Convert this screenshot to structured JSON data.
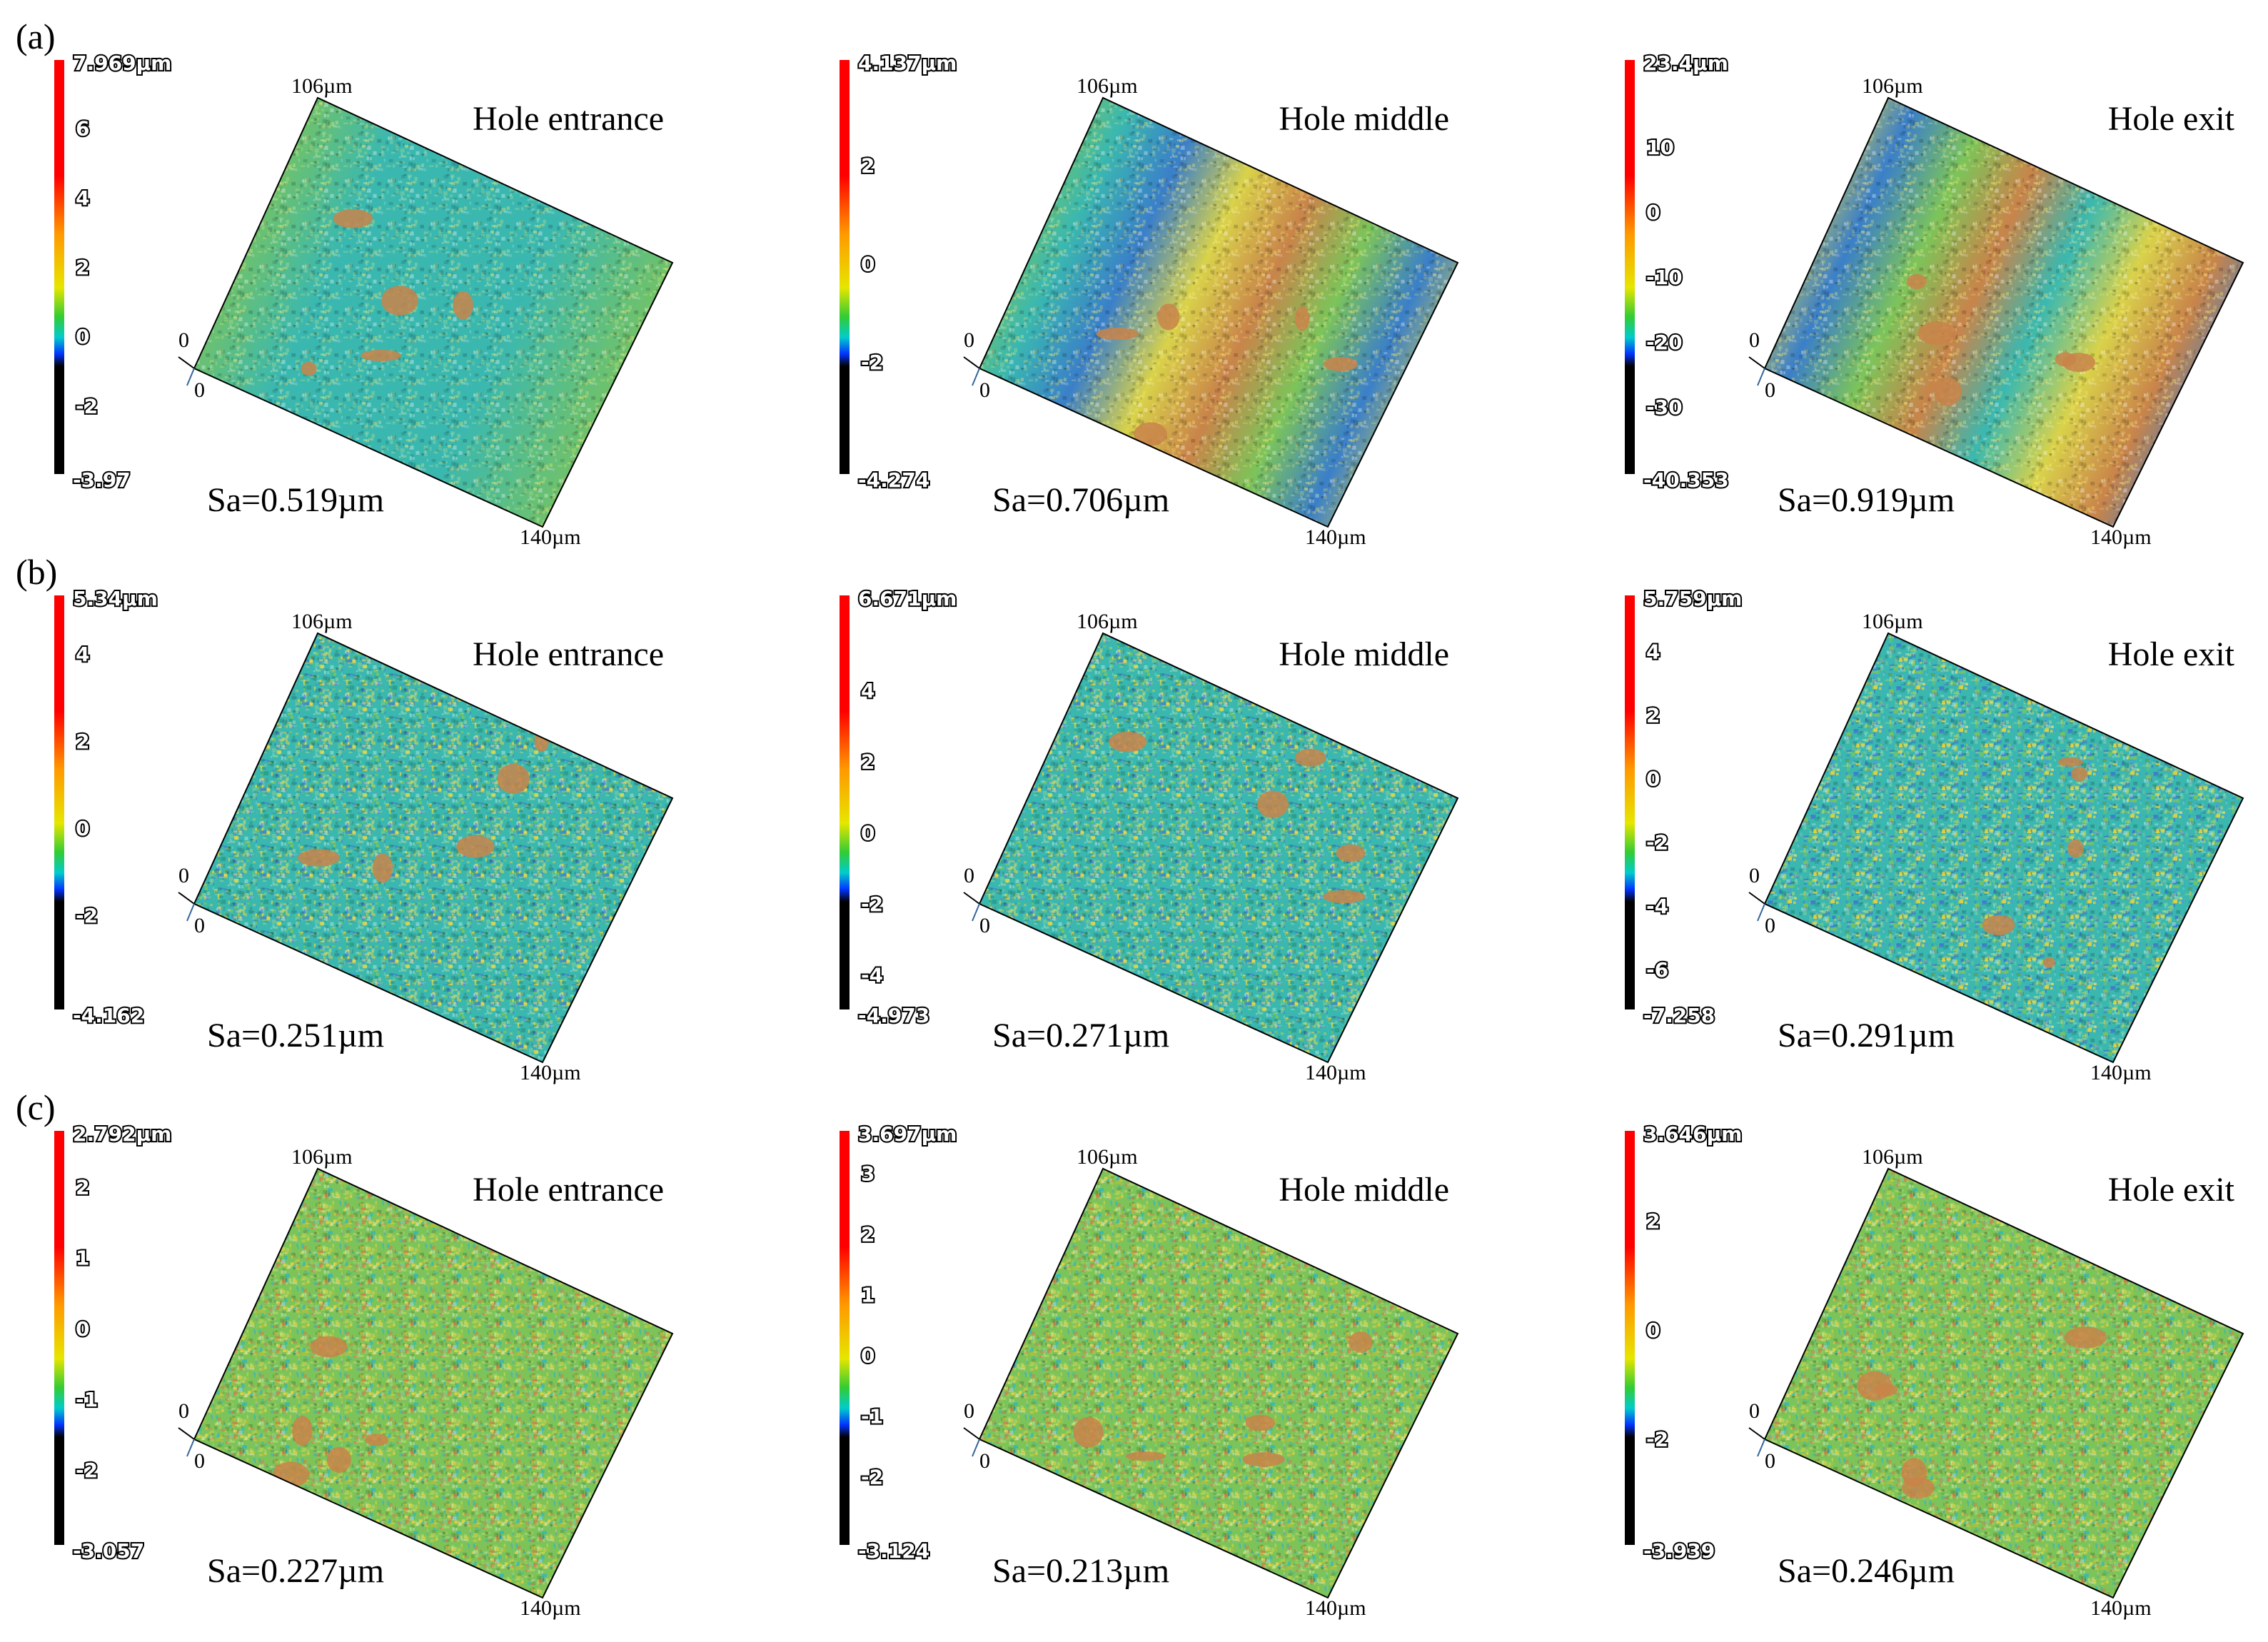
{
  "rows": [
    {
      "label": "(a)",
      "panels": [
        {
          "title": "Hole entrance",
          "sa": "Sa=0.519µm",
          "y_extent": "106µm",
          "x_extent": "140µm",
          "origin_y": "0",
          "origin_x": "0",
          "scale": {
            "max": "7.969µm",
            "min": "-3.97",
            "ticks": [
              "6",
              "4",
              "2",
              "0",
              "-2"
            ],
            "tick_values": [
              6,
              4,
              2,
              0,
              -2
            ],
            "vmax": 7.969,
            "vmin": -3.97
          },
          "texture": "striped-smooth"
        },
        {
          "title": "Hole middle",
          "sa": "Sa=0.706µm",
          "y_extent": "106µm",
          "x_extent": "140µm",
          "origin_y": "0",
          "origin_x": "0",
          "scale": {
            "max": "4.137µm",
            "min": "-4.274",
            "ticks": [
              "2",
              "0",
              "-2"
            ],
            "tick_values": [
              2,
              0,
              -2
            ],
            "vmax": 4.137,
            "vmin": -4.274
          },
          "texture": "striped-mid"
        },
        {
          "title": "Hole exit",
          "sa": "Sa=0.919µm",
          "y_extent": "106µm",
          "x_extent": "140µm",
          "origin_y": "0",
          "origin_x": "0",
          "scale": {
            "max": "23.4µm",
            "min": "-40.353",
            "ticks": [
              "10",
              "0",
              "-10",
              "-20",
              "-30"
            ],
            "tick_values": [
              10,
              0,
              -10,
              -20,
              -30
            ],
            "vmax": 23.4,
            "vmin": -40.353
          },
          "texture": "striped-rough"
        }
      ]
    },
    {
      "label": "(b)",
      "panels": [
        {
          "title": "Hole entrance",
          "sa": "Sa=0.251µm",
          "y_extent": "106µm",
          "x_extent": "140µm",
          "origin_y": "0",
          "origin_x": "0",
          "scale": {
            "max": "5.34µm",
            "min": "-4.162",
            "ticks": [
              "4",
              "2",
              "0",
              "-2"
            ],
            "tick_values": [
              4,
              2,
              0,
              -2
            ],
            "vmax": 5.34,
            "vmin": -4.162
          },
          "texture": "speckle-cyan"
        },
        {
          "title": "Hole middle",
          "sa": "Sa=0.271µm",
          "y_extent": "106µm",
          "x_extent": "140µm",
          "origin_y": "0",
          "origin_x": "0",
          "scale": {
            "max": "6.671µm",
            "min": "-4.973",
            "ticks": [
              "4",
              "2",
              "0",
              "-2",
              "-4"
            ],
            "tick_values": [
              4,
              2,
              0,
              -2,
              -4
            ],
            "vmax": 6.671,
            "vmin": -4.973
          },
          "texture": "speckle-cyan"
        },
        {
          "title": "Hole exit",
          "sa": "Sa=0.291µm",
          "y_extent": "106µm",
          "x_extent": "140µm",
          "origin_y": "0",
          "origin_x": "0",
          "scale": {
            "max": "5.759µm",
            "min": "-7.258",
            "ticks": [
              "4",
              "2",
              "0",
              "-2",
              "-4",
              "-6"
            ],
            "tick_values": [
              4,
              2,
              0,
              -2,
              -4,
              -6
            ],
            "vmax": 5.759,
            "vmin": -7.258
          },
          "texture": "speckle-blue"
        }
      ]
    },
    {
      "label": "(c)",
      "panels": [
        {
          "title": "Hole entrance",
          "sa": "Sa=0.227µm",
          "y_extent": "106µm",
          "x_extent": "140µm",
          "origin_y": "0",
          "origin_x": "0",
          "scale": {
            "max": "2.792µm",
            "min": "-3.057",
            "ticks": [
              "2",
              "1",
              "0",
              "-1",
              "-2"
            ],
            "tick_values": [
              2,
              1,
              0,
              -1,
              -2
            ],
            "vmax": 2.792,
            "vmin": -3.057
          },
          "texture": "speckle-green"
        },
        {
          "title": "Hole middle",
          "sa": "Sa=0.213µm",
          "y_extent": "106µm",
          "x_extent": "140µm",
          "origin_y": "0",
          "origin_x": "0",
          "scale": {
            "max": "3.697µm",
            "min": "-3.124",
            "ticks": [
              "3",
              "2",
              "1",
              "0",
              "-1",
              "-2"
            ],
            "tick_values": [
              3,
              2,
              1,
              0,
              -1,
              -2
            ],
            "vmax": 3.697,
            "vmin": -3.124
          },
          "texture": "speckle-green"
        },
        {
          "title": "Hole exit",
          "sa": "Sa=0.246µm",
          "y_extent": "106µm",
          "x_extent": "140µm",
          "origin_y": "0",
          "origin_x": "0",
          "scale": {
            "max": "3.646µm",
            "min": "-3.939",
            "ticks": [
              "2",
              "0",
              "-2"
            ],
            "tick_values": [
              2,
              0,
              -2
            ],
            "vmax": 3.646,
            "vmin": -3.939
          },
          "texture": "speckle-green"
        }
      ]
    }
  ],
  "colors": {
    "scale_top": "#ff0000",
    "scale_orange": "#ff9900",
    "scale_yellow": "#e6e600",
    "scale_green": "#33cc33",
    "scale_cyan": "#00cccc",
    "scale_blue": "#0033ff",
    "scale_bottom": "#000000",
    "surface_yellow": "#d9d24a",
    "surface_green": "#7cc45a",
    "surface_cyan": "#3ab8b0",
    "surface_blue": "#3a7fc9",
    "surface_orange": "#c9844a"
  }
}
